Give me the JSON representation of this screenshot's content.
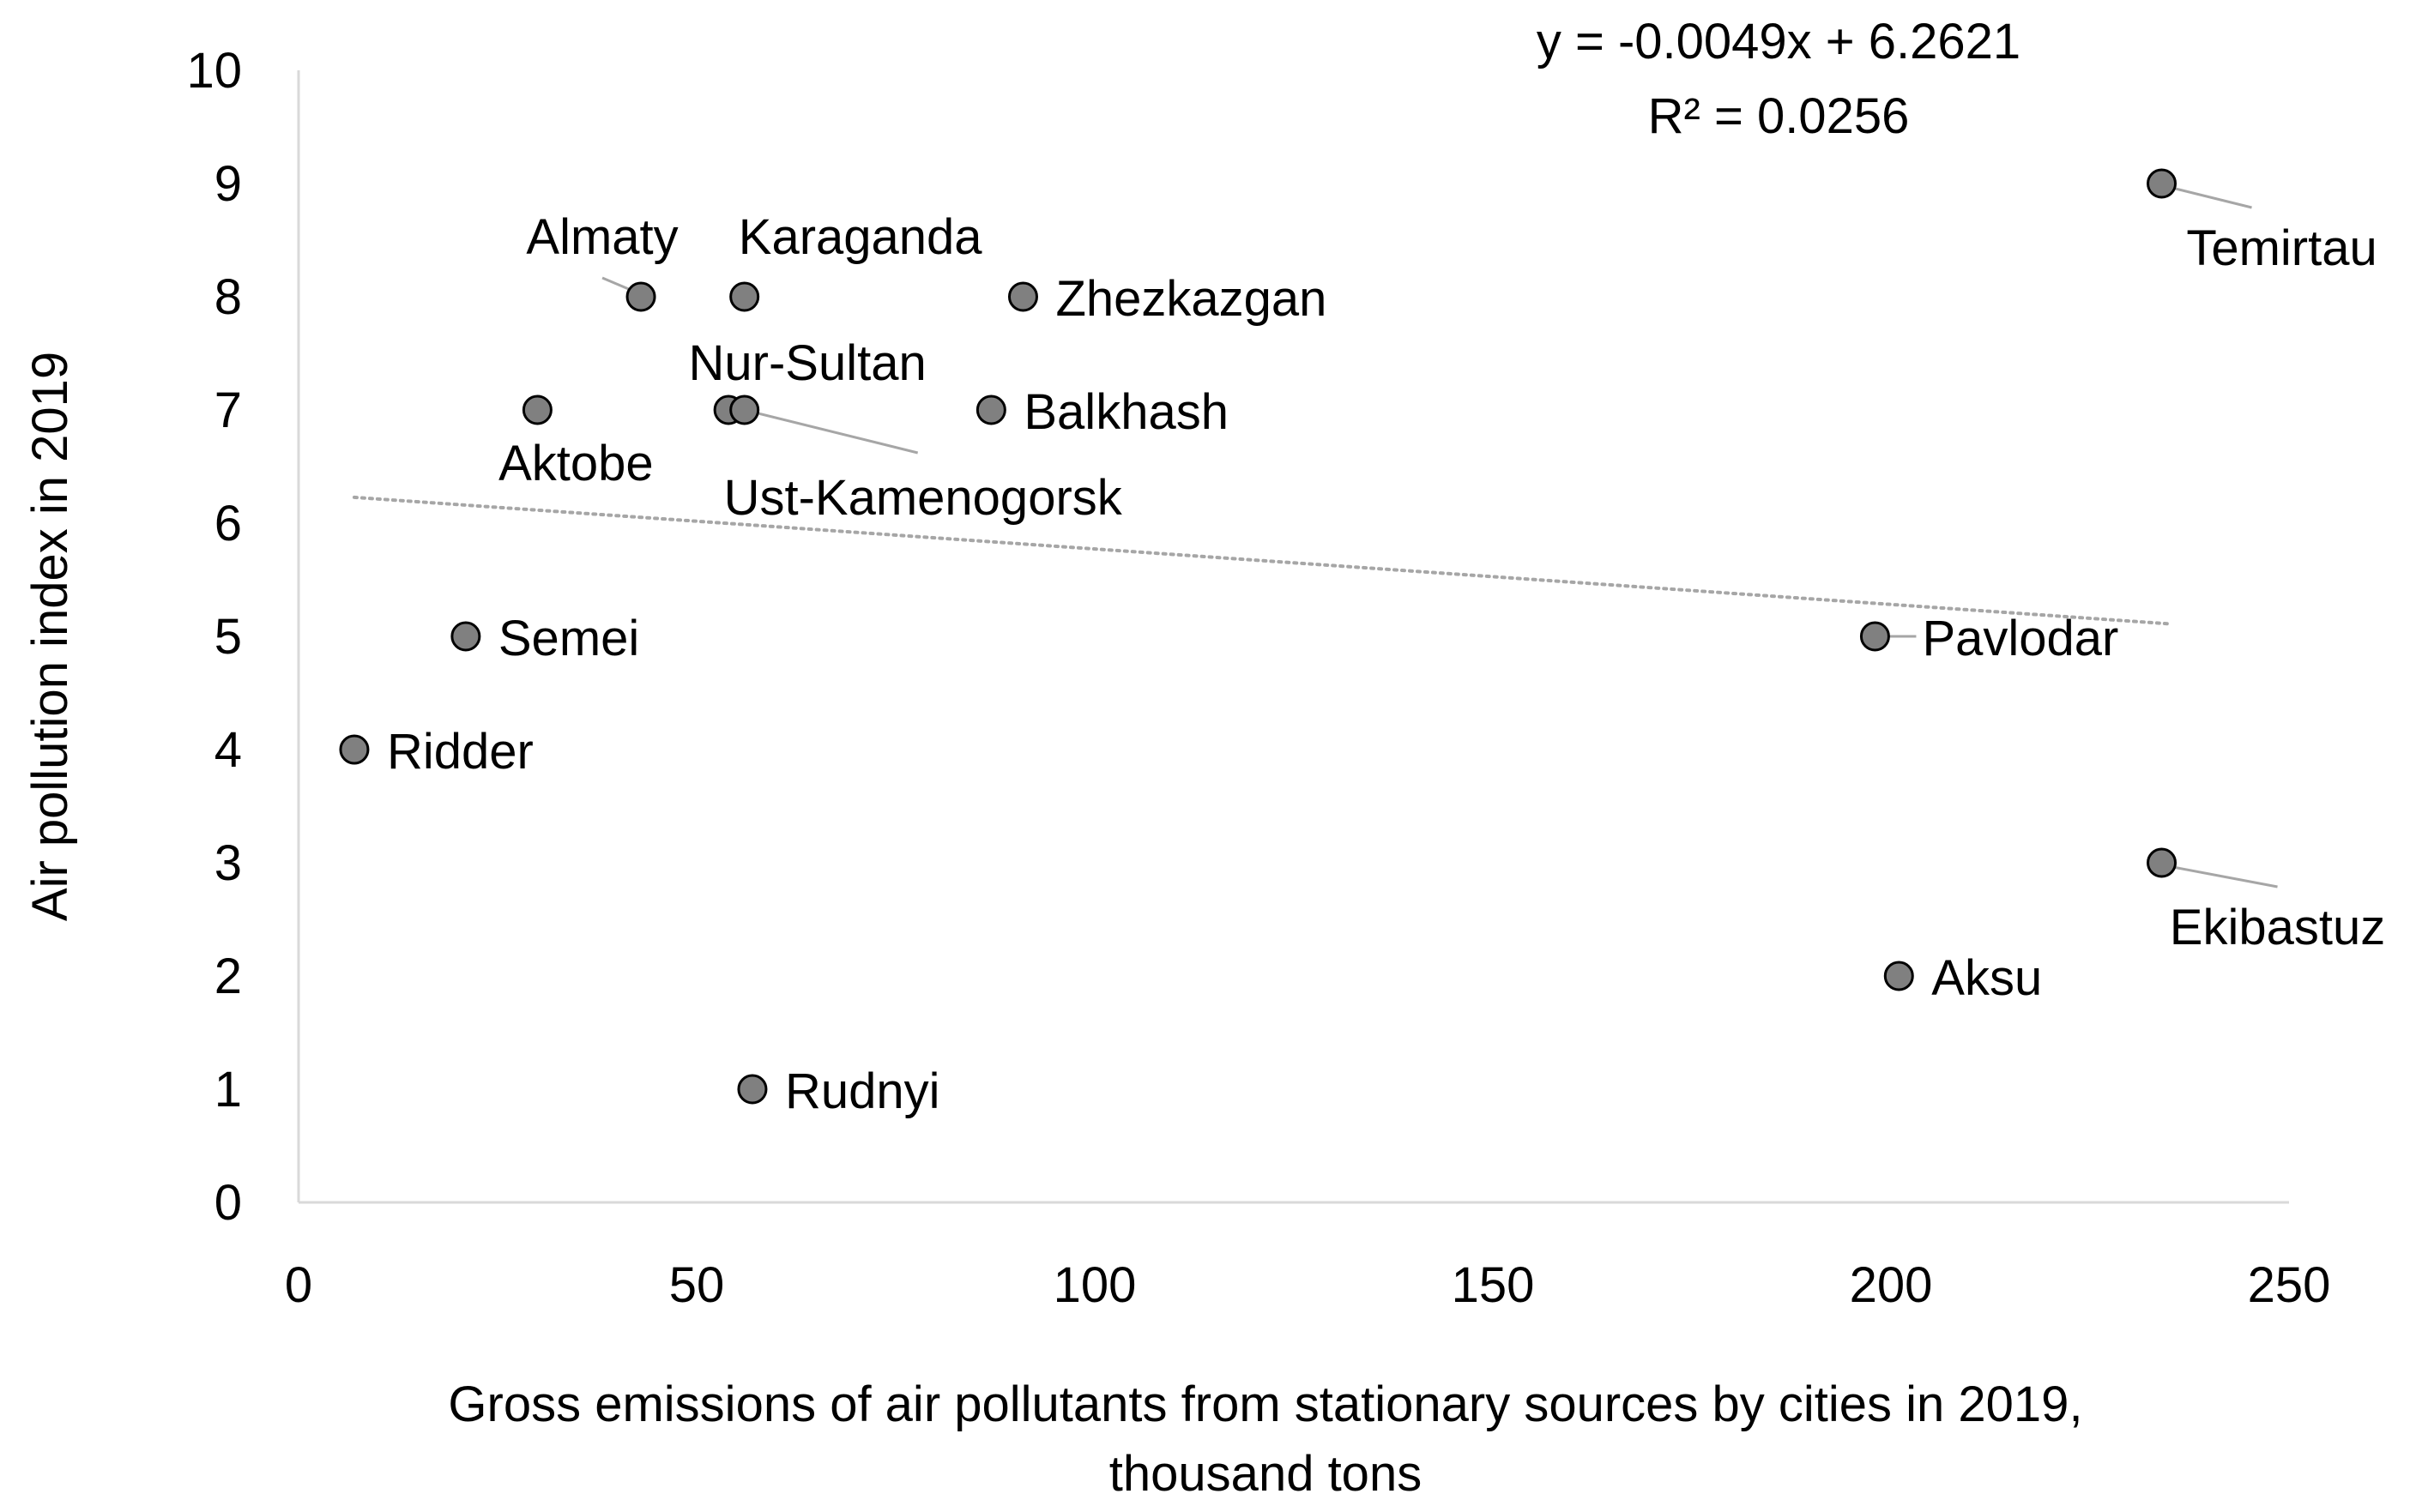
{
  "chart_data": {
    "type": "scatter",
    "title": "",
    "xlabel_lines": [
      "Gross emissions of air pollutants from stationary sources by cities in 2019,",
      "thousand tons"
    ],
    "ylabel": "Air pollution index in 2019",
    "xlim": [
      0,
      250
    ],
    "ylim": [
      0,
      10
    ],
    "x_ticks": [
      "0",
      "50",
      "100",
      "150",
      "200",
      "250"
    ],
    "y_ticks": [
      "0",
      "1",
      "2",
      "3",
      "4",
      "5",
      "6",
      "7",
      "8",
      "9",
      "10"
    ],
    "grid": false,
    "legend": "none",
    "marker_color": "#808080",
    "trendline": {
      "type": "linear",
      "slope": -0.0049,
      "intercept": 6.2621,
      "x_range": [
        7,
        235
      ],
      "style": "dotted",
      "color": "#a6a6a6",
      "equation_text": "y = -0.0049x + 6.2621",
      "r2_text": "R² = 0.0256"
    },
    "points": [
      {
        "name": "Temirtau",
        "x": 234,
        "y": 9
      },
      {
        "name": "Almaty",
        "x": 43,
        "y": 8
      },
      {
        "name": "Karaganda",
        "x": 56,
        "y": 8
      },
      {
        "name": "Zhezkazgan",
        "x": 91,
        "y": 8
      },
      {
        "name": "Nur-Sultan",
        "x": 54,
        "y": 7
      },
      {
        "name": "Ust-Kamenogorsk",
        "x": 56,
        "y": 7
      },
      {
        "name": "Balkhash",
        "x": 87,
        "y": 7
      },
      {
        "name": "Aktobe",
        "x": 30,
        "y": 7
      },
      {
        "name": "Semei",
        "x": 21,
        "y": 5
      },
      {
        "name": "Pavlodar",
        "x": 198,
        "y": 5
      },
      {
        "name": "Ridder",
        "x": 7,
        "y": 4
      },
      {
        "name": "Ekibastuz",
        "x": 234,
        "y": 3
      },
      {
        "name": "Aksu",
        "x": 201,
        "y": 2
      },
      {
        "name": "Rudnyi",
        "x": 57,
        "y": 1
      }
    ]
  }
}
